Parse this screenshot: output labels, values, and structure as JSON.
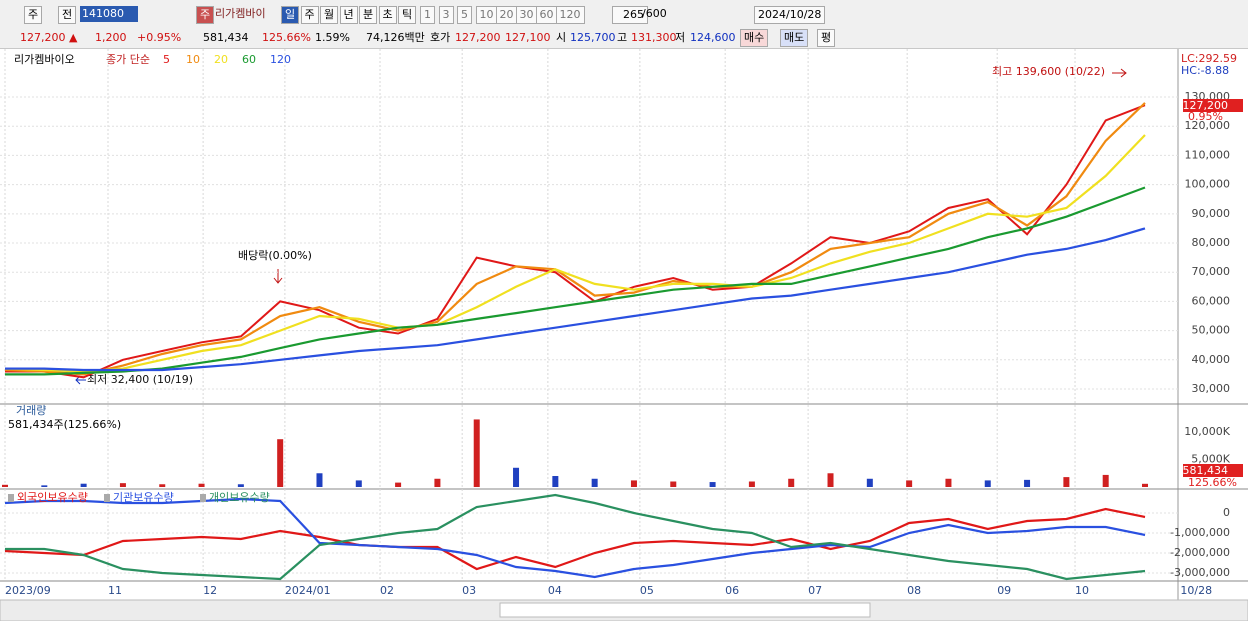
{
  "toolbar": {
    "row1": {
      "market": "주",
      "scope": "전",
      "code": "141080",
      "name_box": "주",
      "name": "리가켐바이",
      "periods": [
        "일",
        "주",
        "월",
        "년",
        "분",
        "초",
        "틱"
      ],
      "intervals": [
        "1",
        "3",
        "5",
        "10",
        "20",
        "30",
        "60",
        "120"
      ],
      "count": "265",
      "max": "/600",
      "date": "2024/10/28"
    },
    "row2": {
      "price": "127,200 ▲",
      "change": "1,200",
      "change_pct": "+0.95%",
      "volume": "581,434",
      "volume_ratio": "125.66%",
      "turnover": "1.59%",
      "amount": "74,126백만",
      "quote_label": "호가",
      "ask": "127,200",
      "bid": "127,100",
      "open_label": "시",
      "open": "125,700",
      "high_label": "고",
      "high": "131,300",
      "low_label": "저",
      "low": "124,600",
      "buy": "매수",
      "sell": "매도",
      "avg": "평"
    }
  },
  "chart_data": [
    {
      "type": "line",
      "title": "리가켐바이오",
      "subtitle": "종가 단순",
      "xlim": [
        0,
        29
      ],
      "xticks": [
        {
          "value": 0,
          "label": "2023/09"
        },
        {
          "value": 2.62,
          "label": "11"
        },
        {
          "value": 5.04,
          "label": "12"
        },
        {
          "value": 7.12,
          "label": "2024/01"
        },
        {
          "value": 9.54,
          "label": "02"
        },
        {
          "value": 11.63,
          "label": "03"
        },
        {
          "value": 13.81,
          "label": "04"
        },
        {
          "value": 16.15,
          "label": "05"
        },
        {
          "value": 18.32,
          "label": "06"
        },
        {
          "value": 20.43,
          "label": "07"
        },
        {
          "value": 22.95,
          "label": "08"
        },
        {
          "value": 25.24,
          "label": "09"
        },
        {
          "value": 27.22,
          "label": "10"
        },
        {
          "value": 29.9,
          "label": "10/28"
        }
      ],
      "ylim": [
        25200,
        144400
      ],
      "yticks": [
        {
          "value": 30000,
          "label": "30,000"
        },
        {
          "value": 40000,
          "label": "40,000"
        },
        {
          "value": 50000,
          "label": "50,000"
        },
        {
          "value": 60000,
          "label": "60,000"
        },
        {
          "value": 70000,
          "label": "70,000"
        },
        {
          "value": 80000,
          "label": "80,000"
        },
        {
          "value": 90000,
          "label": "90,000"
        },
        {
          "value": 100000,
          "label": "100,000"
        },
        {
          "value": 110000,
          "label": "110,000"
        },
        {
          "value": 120000,
          "label": "120,000"
        },
        {
          "value": 130000,
          "label": "130,000"
        }
      ],
      "grid": true,
      "series": [
        {
          "name": "5",
          "color": "#e01818",
          "values": [
            36000,
            36000,
            34000,
            40000,
            43000,
            46000,
            48000,
            60000,
            57000,
            51000,
            49000,
            54000,
            75000,
            72000,
            70000,
            60000,
            65000,
            68000,
            64000,
            65000,
            73000,
            82000,
            80000,
            84000,
            92000,
            95000,
            83000,
            100000,
            122000,
            127200
          ]
        },
        {
          "name": "10",
          "color": "#f08a10",
          "values": [
            36500,
            36000,
            35000,
            38000,
            42000,
            45000,
            47000,
            55000,
            58000,
            53000,
            50000,
            53000,
            66000,
            72000,
            71000,
            62000,
            63000,
            67000,
            65000,
            65000,
            70000,
            78000,
            80000,
            82000,
            90000,
            94000,
            86000,
            96000,
            115000,
            128000
          ]
        },
        {
          "name": "20",
          "color": "#f0e020",
          "values": [
            37000,
            36500,
            36000,
            37000,
            40000,
            43000,
            45000,
            50000,
            55000,
            54000,
            51000,
            52000,
            58000,
            65000,
            71000,
            66000,
            64000,
            66000,
            66000,
            65000,
            68000,
            73000,
            77000,
            80000,
            85000,
            90000,
            89000,
            92000,
            103000,
            117000
          ]
        },
        {
          "name": "60",
          "color": "#1a9a30",
          "values": [
            35000,
            35000,
            35500,
            36000,
            37000,
            39000,
            41000,
            44000,
            47000,
            49000,
            51000,
            52000,
            54000,
            56000,
            58000,
            60000,
            62000,
            64000,
            65000,
            66000,
            66000,
            69000,
            72000,
            75000,
            78000,
            82000,
            85000,
            89000,
            94000,
            99000
          ]
        },
        {
          "name": "120",
          "color": "#2a50e0",
          "values": [
            37000,
            37000,
            36500,
            36500,
            36500,
            37500,
            38500,
            40000,
            41500,
            43000,
            44000,
            45000,
            47000,
            49000,
            51000,
            53000,
            55000,
            57000,
            59000,
            61000,
            62000,
            64000,
            66000,
            68000,
            70000,
            73000,
            76000,
            78000,
            81000,
            85000
          ]
        }
      ],
      "right_labels": [
        "LC:292.59",
        "HC:-8.88"
      ],
      "last_price": "127,200",
      "last_change": "0.95%",
      "high_label": "최고 139,600 (10/22)",
      "low_label": "최저 32,400 (10/19)",
      "event_label": "배당락(0.00%)"
    },
    {
      "type": "bar",
      "title": "거래량",
      "subtitle": "581,434주(125.66%)",
      "ylim": [
        0,
        14200
      ],
      "yticks": [
        {
          "value": 5000,
          "label": "5,000K"
        },
        {
          "value": 10000,
          "label": "10,000K"
        }
      ],
      "values": [
        400,
        300,
        600,
        700,
        500,
        600,
        500,
        8700,
        2500,
        1200,
        800,
        1500,
        12300,
        3500,
        2000,
        1500,
        1200,
        1000,
        900,
        1000,
        1500,
        2500,
        1500,
        1200,
        1500,
        1200,
        1300,
        1800,
        2200,
        581.434
      ],
      "colors": [
        "#d02020",
        "#2040c0",
        "#2040c0",
        "#d02020",
        "#d02020",
        "#d02020",
        "#2040c0",
        "#d02020",
        "#2040c0",
        "#2040c0",
        "#d02020",
        "#d02020",
        "#d02020",
        "#2040c0",
        "#2040c0",
        "#2040c0",
        "#d02020",
        "#d02020",
        "#2040c0",
        "#d02020",
        "#d02020",
        "#d02020",
        "#2040c0",
        "#d02020",
        "#d02020",
        "#2040c0",
        "#2040c0",
        "#d02020",
        "#d02020",
        "#d02020"
      ],
      "last_label": "581,434",
      "last_ratio": "125.66%"
    },
    {
      "type": "line",
      "ylim": [
        -3350000,
        950000
      ],
      "yticks": [
        0,
        {
          "value": -1000000,
          "label": "-1,000,000"
        },
        {
          "value": -2000000,
          "label": "-2,000,000"
        },
        {
          "value": -3000000,
          "label": "-3,000,000"
        }
      ],
      "series": [
        {
          "name": "외국인보유수량",
          "color": "#e01818",
          "values": [
            -1900000,
            -2000000,
            -2100000,
            -1400000,
            -1300000,
            -1200000,
            -1300000,
            -900000,
            -1200000,
            -1600000,
            -1700000,
            -1700000,
            -2800000,
            -2200000,
            -2700000,
            -2000000,
            -1500000,
            -1400000,
            -1500000,
            -1600000,
            -1300000,
            -1800000,
            -1400000,
            -500000,
            -300000,
            -800000,
            -400000,
            -300000,
            200000,
            -200000
          ]
        },
        {
          "name": "기관보유수량",
          "color": "#2a50e0",
          "values": [
            500000,
            600000,
            600000,
            500000,
            500000,
            600000,
            700000,
            600000,
            -1500000,
            -1600000,
            -1700000,
            -1800000,
            -2100000,
            -2700000,
            -2900000,
            -3200000,
            -2800000,
            -2600000,
            -2300000,
            -2000000,
            -1800000,
            -1600000,
            -1700000,
            -1000000,
            -600000,
            -1000000,
            -900000,
            -700000,
            -700000,
            -1100000
          ]
        },
        {
          "name": "개인보유수량",
          "color": "#2a9060",
          "values": [
            -1800000,
            -1800000,
            -2100000,
            -2800000,
            -3000000,
            -3100000,
            -3200000,
            -3300000,
            -1600000,
            -1300000,
            -1000000,
            -800000,
            300000,
            600000,
            900000,
            500000,
            0,
            -400000,
            -800000,
            -1000000,
            -1700000,
            -1500000,
            -1800000,
            -2100000,
            -2400000,
            -2600000,
            -2800000,
            -3300000,
            -3100000,
            -2900000
          ]
        }
      ]
    }
  ]
}
